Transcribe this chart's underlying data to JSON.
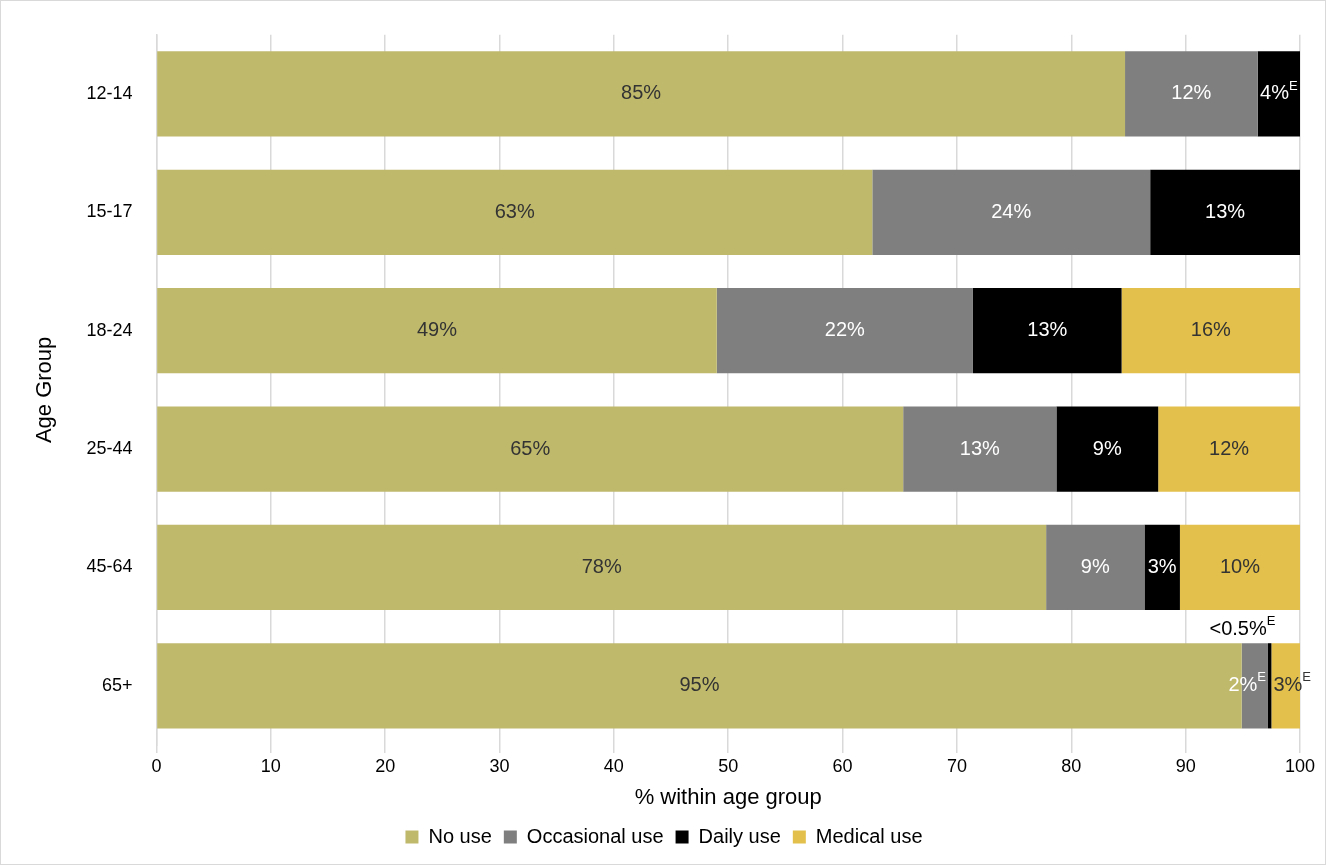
{
  "chart_data": {
    "type": "bar",
    "orientation": "horizontal",
    "stacked": true,
    "xlabel": "% within age group",
    "ylabel": "Age Group",
    "categories": [
      "12-14",
      "15-17",
      "18-24",
      "25-44",
      "45-64",
      "65+"
    ],
    "series": [
      {
        "name": "No use",
        "color": "#bfb96c",
        "values": [
          84.7,
          62.6,
          49.0,
          65.3,
          77.8,
          94.9
        ],
        "value_labels": [
          "85%",
          "63%",
          "49%",
          "65%",
          "78%",
          "95%"
        ]
      },
      {
        "name": "Occasional use",
        "color": "#7f7f7f",
        "values": [
          11.6,
          24.3,
          22.4,
          13.4,
          8.6,
          2.3
        ],
        "value_labels": [
          "12%",
          "24%",
          "22%",
          "13%",
          "9%",
          "2%$^{E}$"
        ]
      },
      {
        "name": "Daily use",
        "color": "#000000",
        "values": [
          3.7,
          13.1,
          13.0,
          8.9,
          3.1,
          0.3
        ],
        "value_labels": [
          "4%$^{E}$",
          "13%",
          "13%",
          "9%",
          "3%",
          "<0.5%$^{E}$"
        ]
      },
      {
        "name": "Medical use",
        "color": "#e3c04b",
        "values": [
          null,
          null,
          15.6,
          12.4,
          10.5,
          2.5
        ],
        "value_labels": [
          null,
          null,
          "16%",
          "12%",
          "10%",
          "3%$^{E}$"
        ]
      }
    ],
    "xlim": [
      0,
      100
    ],
    "xticks": [
      0,
      10,
      20,
      30,
      40,
      50,
      60,
      70,
      80,
      90,
      100
    ],
    "grid": "x",
    "legend": "bottom"
  }
}
